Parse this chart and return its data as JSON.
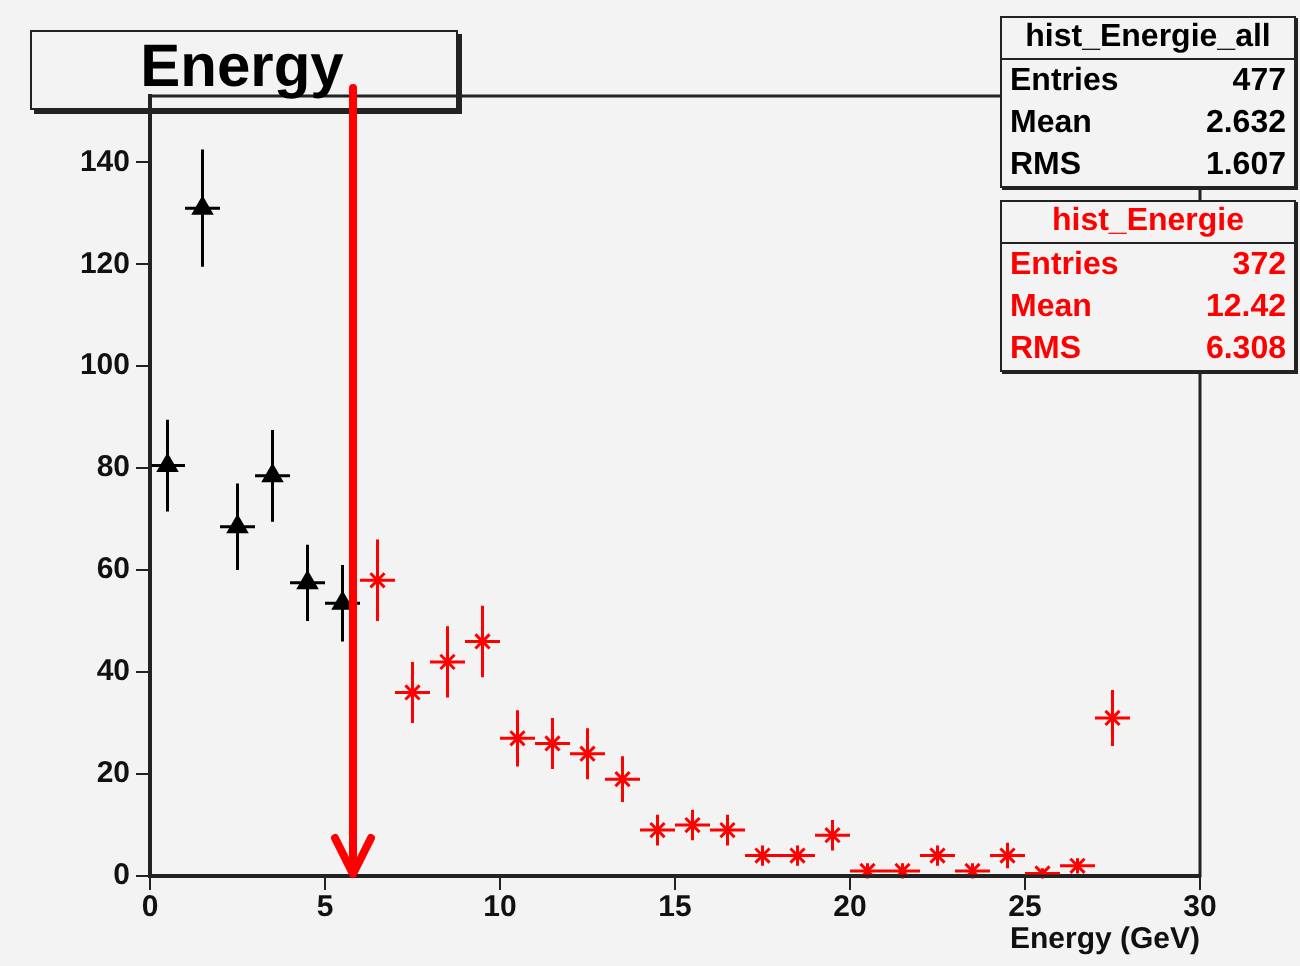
{
  "chart_data": {
    "type": "scatter",
    "title": "Energy",
    "xlabel": "Energy (GeV)",
    "xlim": [
      0,
      30
    ],
    "xticks": [
      0,
      5,
      10,
      15,
      20,
      25,
      30
    ],
    "ylim": [
      0,
      153
    ],
    "yticks": [
      0,
      20,
      40,
      60,
      80,
      100,
      120,
      140
    ],
    "grid": false,
    "legend": "top right",
    "series": [
      {
        "name": "hist_Energie_all",
        "color": "#000000",
        "marker": "triangle",
        "x": [
          0.5,
          1.5,
          2.5,
          3.5,
          4.5,
          5.5
        ],
        "values": [
          80.5,
          131,
          68.5,
          78.5,
          57.5,
          53.5
        ],
        "errors": [
          9,
          11.5,
          8.5,
          9,
          7.5,
          7.5
        ],
        "xerrors": [
          0.5,
          0.5,
          0.5,
          0.5,
          0.5,
          0.5
        ]
      },
      {
        "name": "hist_Energie",
        "color": "#ff0000",
        "marker": "cross",
        "x": [
          6.5,
          7.5,
          8.5,
          9.5,
          10.5,
          11.5,
          12.5,
          13.5,
          14.5,
          15.5,
          16.5,
          17.5,
          18.5,
          19.5,
          20.5,
          21.5,
          22.5,
          23.5,
          24.5,
          25.5,
          26.5,
          27.5
        ],
        "values": [
          58,
          36,
          42,
          46,
          27,
          26,
          24,
          19,
          9,
          10,
          9,
          4,
          4,
          8,
          1,
          1,
          4,
          1,
          4,
          0.5,
          2,
          31
        ],
        "errors": [
          8,
          6,
          7,
          7,
          5.5,
          5,
          5,
          4.5,
          3,
          3,
          3,
          2,
          2,
          3,
          1.5,
          1.5,
          2,
          1.5,
          2.5,
          1,
          1.5,
          5.5
        ],
        "xerrors": [
          0.5,
          0.5,
          0.5,
          0.5,
          0.5,
          0.5,
          0.5,
          0.5,
          0.5,
          0.5,
          0.5,
          0.5,
          0.5,
          0.5,
          0.5,
          0.5,
          0.5,
          0.5,
          0.5,
          0.5,
          0.5,
          0.5
        ]
      }
    ],
    "ref_lines": [
      {
        "axis": "x",
        "value": 5.8,
        "color": "#ff0000"
      }
    ],
    "annotations": [
      "Entries 477",
      "Mean 2.632",
      "RMS 1.607",
      "Entries 372",
      "Mean 12.42",
      "RMS 6.308"
    ]
  }
}
